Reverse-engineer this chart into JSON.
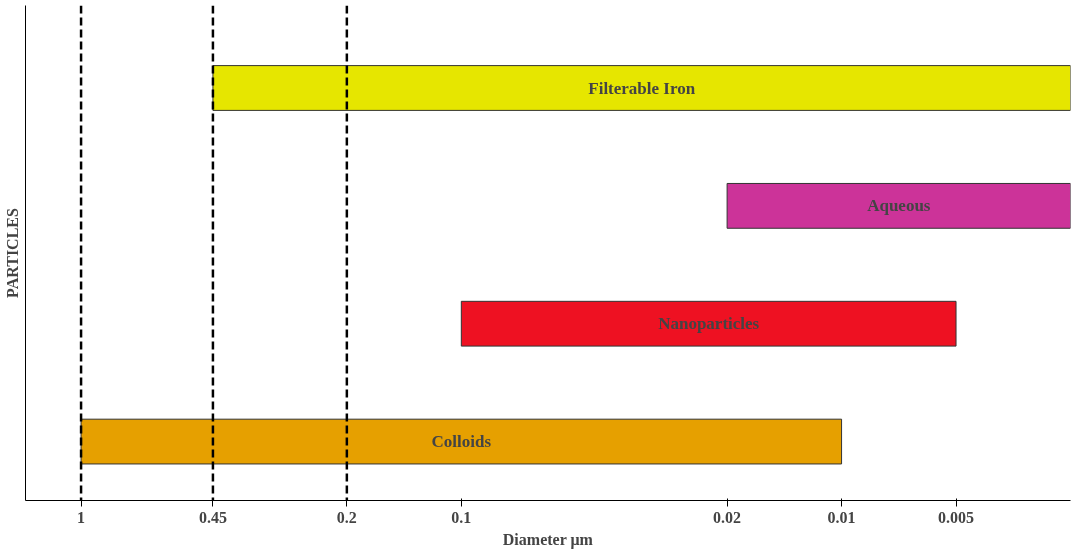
{
  "chart_data": {
    "type": "bar",
    "orientation": "horizontal",
    "xlabel": "Diameter μm",
    "ylabel": "PARTICLES",
    "categories": [
      "Filterable Iron",
      "Aqueous",
      "Nanoparticles",
      "Colloids"
    ],
    "base": [
      0.45,
      0.02,
      0.1,
      1
    ],
    "values": [
      -0.4475,
      -0.0175,
      -0.095,
      -0.99
    ],
    "colors": [
      "#e6e600",
      "#cc3399",
      "#ee1122",
      "#e6a000"
    ],
    "log": "x",
    "xlim": [
      1.4,
      0.0025
    ],
    "xticks": [
      1,
      0.45,
      0.2,
      0.1,
      0.02,
      0.01,
      0.005
    ],
    "tick_labels": "x",
    "grid": false,
    "ref_lines": [
      {
        "axis": "x",
        "value": 1,
        "line_style": "dashed",
        "color": "#000000"
      },
      {
        "axis": "x",
        "value": 0.45,
        "line_style": "dashed",
        "color": "#000000"
      },
      {
        "axis": "x",
        "value": 0.2,
        "line_style": "dashed",
        "color": "#000000"
      }
    ]
  }
}
